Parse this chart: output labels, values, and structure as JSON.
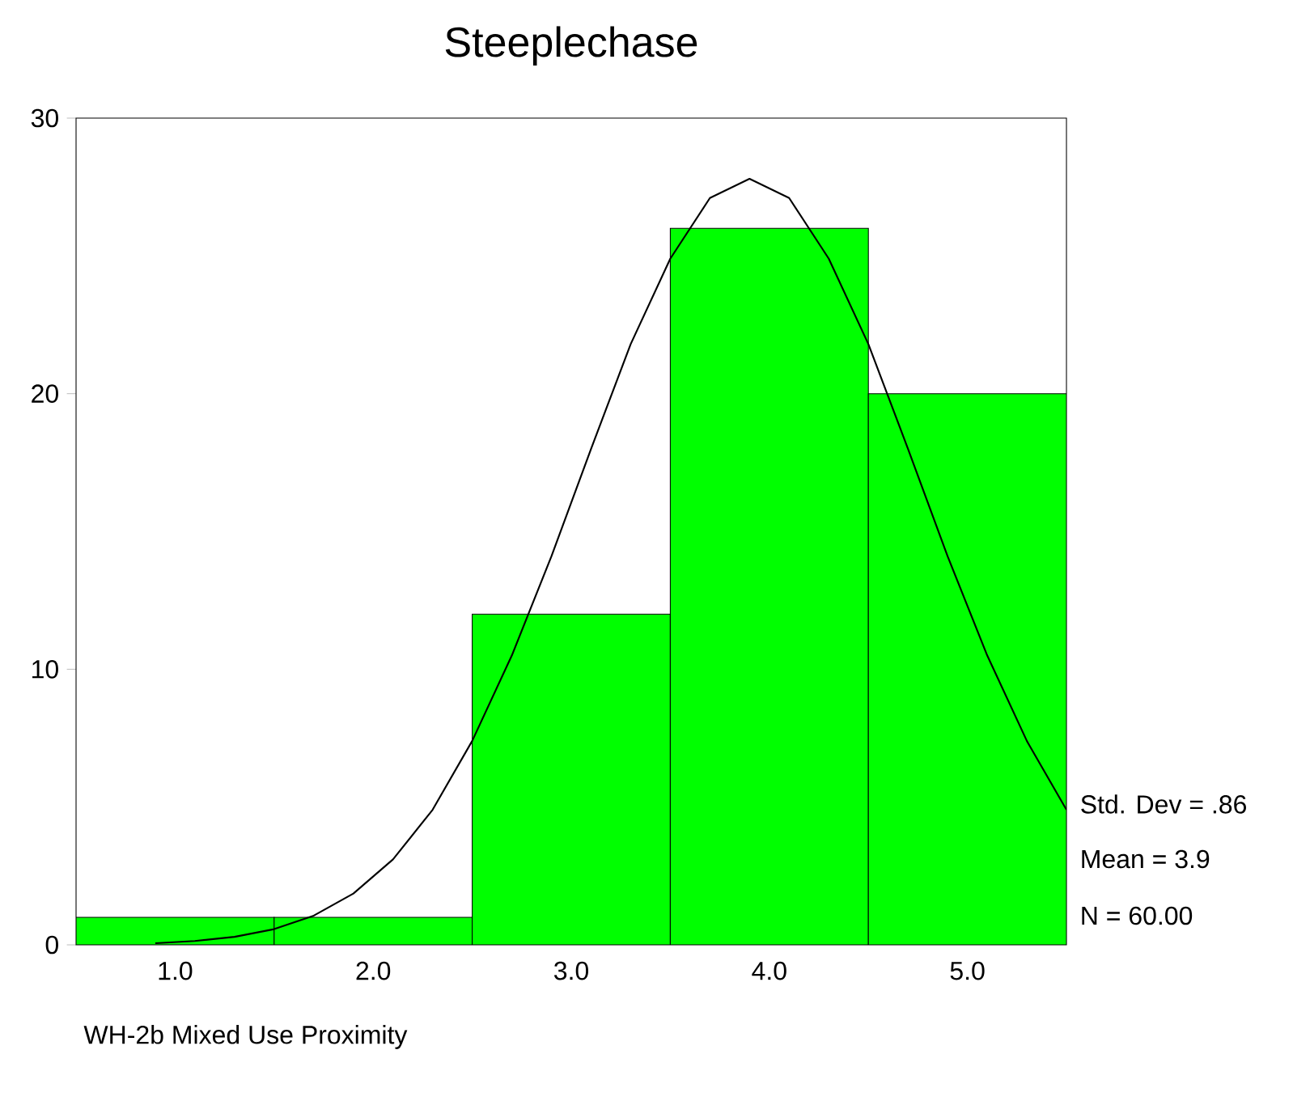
{
  "chart_data": {
    "type": "histogram",
    "title": "Steeplechase",
    "xlabel": "WH-2b  Mixed Use Proximity",
    "bins": [
      0.5,
      1.5,
      2.5,
      3.5,
      4.5,
      5.5
    ],
    "series": [
      {
        "color": "#00ff00",
        "values": [
          1,
          1,
          12,
          26,
          20
        ]
      },
      {
        "type": "line",
        "color": "#000000",
        "x": [
          0.9,
          1.1,
          1.3,
          1.5,
          1.7,
          1.9,
          2.1,
          2.3,
          2.5,
          2.7,
          2.9,
          3.1,
          3.3,
          3.5,
          3.7,
          3.9,
          4.1,
          4.3,
          4.5,
          4.7,
          4.9,
          5.1,
          5.3,
          5.5
        ],
        "values": [
          0.06,
          0.14,
          0.29,
          0.57,
          1.06,
          1.86,
          3.1,
          4.9,
          7.4,
          10.5,
          14.1,
          18.0,
          21.8,
          24.9,
          27.1,
          27.8,
          27.1,
          24.9,
          21.8,
          18.0,
          14.1,
          10.5,
          7.4,
          4.9
        ]
      }
    ],
    "xlim": [
      0.5,
      5.5
    ],
    "ylim": [
      0,
      30
    ],
    "xticks": [
      {
        "value": 1,
        "label": "1.0"
      },
      {
        "value": 2,
        "label": "2.0"
      },
      {
        "value": 3,
        "label": "3.0"
      },
      {
        "value": 4,
        "label": "4.0"
      },
      {
        "value": 5,
        "label": "5.0"
      }
    ],
    "yticks": [
      0,
      10,
      20,
      30
    ],
    "annotations": [
      "Std. Dev = .86",
      "Mean = 3.9",
      "N = 60.00"
    ]
  }
}
